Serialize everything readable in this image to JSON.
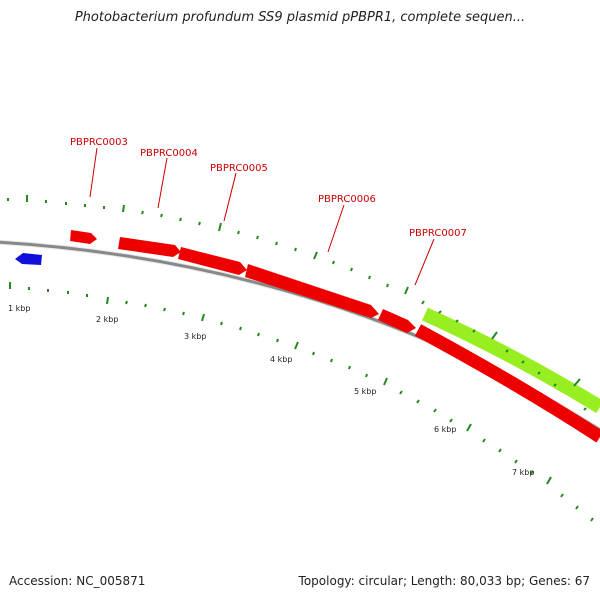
{
  "title": "Photobacterium profundum SS9 plasmid pPBPR1, complete sequen...",
  "footer": {
    "accession": "Accession: NC_005871",
    "summary": "Topology: circular; Length: 80,033 bp; Genes: 67"
  },
  "colors": {
    "forward_gene": "#ee0000",
    "reverse_gene": "#1010dd",
    "highlight_gene": "#99ee22",
    "backbone": "#888888",
    "ticks": "#228822",
    "label": "#cc0000"
  },
  "gene_labels": [
    {
      "name": "PBPRC0003"
    },
    {
      "name": "PBPRC0004"
    },
    {
      "name": "PBPRC0005"
    },
    {
      "name": "PBPRC0006"
    },
    {
      "name": "PBPRC0007"
    }
  ],
  "scale_labels": [
    "1 kbp",
    "2 kbp",
    "3 kbp",
    "4 kbp",
    "5 kbp",
    "6 kbp",
    "7 kbp"
  ]
}
